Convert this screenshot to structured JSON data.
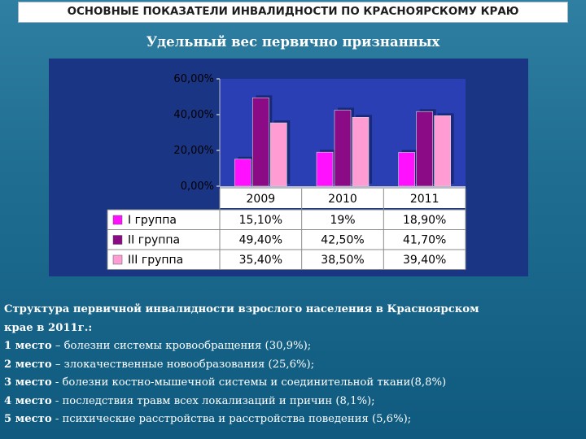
{
  "header": {
    "title": "ОСНОВНЫЕ ПОКАЗАТЕЛИ ИНВАЛИДНОСТИ ПО КРАСНОЯРСКОМУ КРАЮ",
    "subtitle": "Удельный вес первично признанных"
  },
  "chart_data": {
    "type": "bar",
    "categories": [
      "2009",
      "2010",
      "2011"
    ],
    "series": [
      {
        "name": "I группа",
        "values": [
          15.1,
          19.0,
          18.9
        ],
        "labels": [
          "15,10%",
          "19%",
          "18,90%"
        ],
        "color": "#ff10ff"
      },
      {
        "name": "II группа",
        "values": [
          49.4,
          42.5,
          41.7
        ],
        "labels": [
          "49,40%",
          "42,50%",
          "41,70%"
        ],
        "color": "#8b0a85"
      },
      {
        "name": "III группа",
        "values": [
          35.4,
          38.5,
          39.4
        ],
        "labels": [
          "35,40%",
          "38,50%",
          "39,40%"
        ],
        "color": "#ff9cd4"
      }
    ],
    "ylim": [
      0,
      60
    ],
    "yticks": [
      0,
      20,
      40,
      60
    ],
    "ytick_labels": [
      "0,00%",
      "20,00%",
      "40,00%",
      "60,00%"
    ],
    "grid": false,
    "legend": "data-table below chart",
    "colors": {
      "panel": "#1b3585",
      "plot": "#2b3fb4",
      "table": "#ffffff"
    }
  },
  "text": {
    "intro_lines": [
      "Структура первичной инвалидности взрослого населения в Красноярском",
      "крае в 2011г.:"
    ],
    "items": [
      {
        "rank": "1 место",
        "text": " – болезни системы кровообращения (30,9%);"
      },
      {
        "rank": "2 место",
        "text": " – злокачественные новообразования (25,6%);"
      },
      {
        "rank": "3 место",
        "text": " - болезни костно-мышечной системы и соединительной ткани(8,8%)"
      },
      {
        "rank": "4 место",
        "text": " -  последствия травм всех локализаций и причин (8,1%);"
      },
      {
        "rank": "5 место",
        "text": " - психические расстройства и расстройства поведения (5,6%);"
      }
    ]
  }
}
